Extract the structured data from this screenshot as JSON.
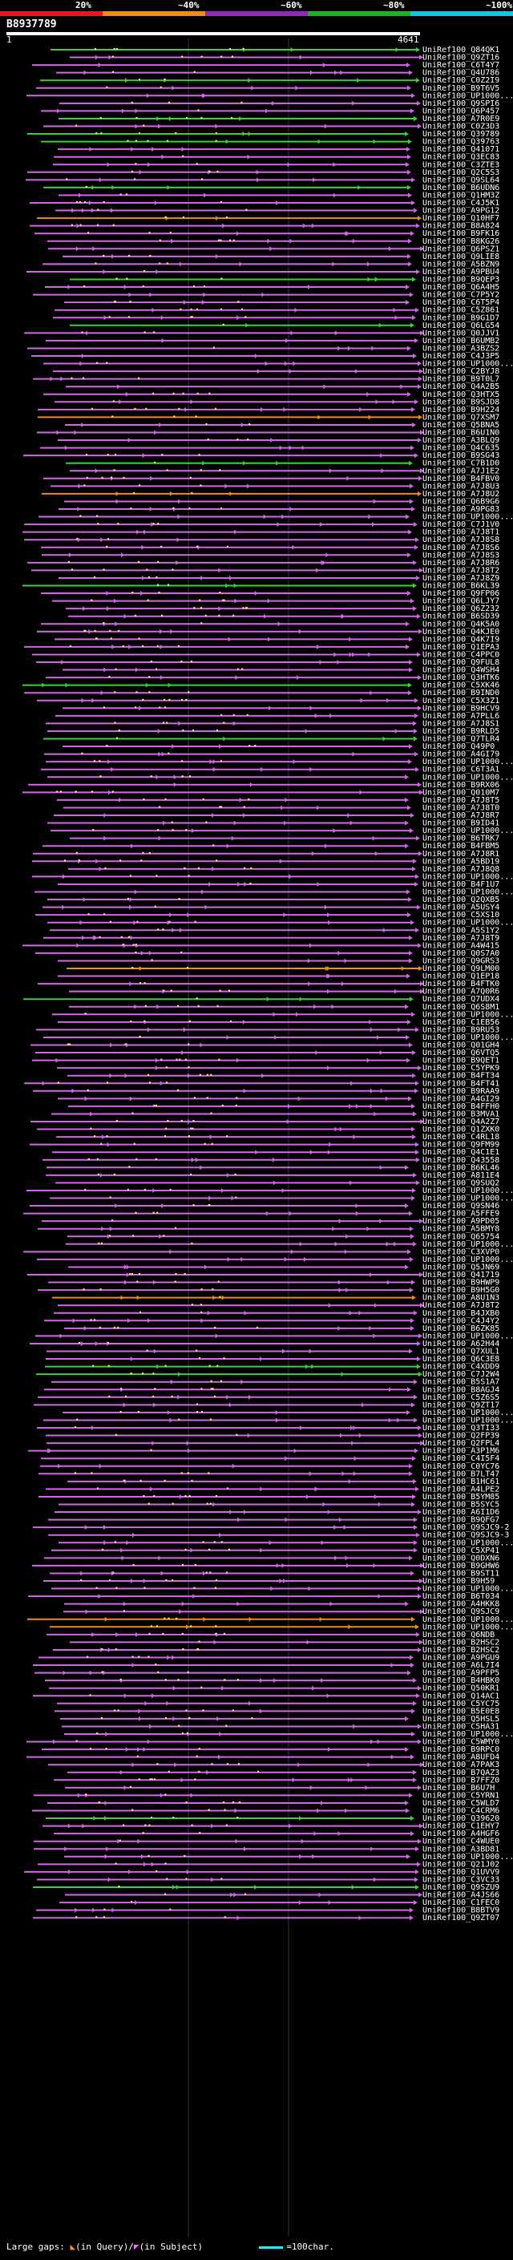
{
  "query": {
    "id": "B8937789",
    "start": "1",
    "end": "4641"
  },
  "legend": [
    {
      "label": "20%",
      "color": "#e8191e"
    },
    {
      "label": "~40%",
      "color": "#f28c1e"
    },
    {
      "label": "~60%",
      "color": "#8e2bb5"
    },
    {
      "label": "~80%",
      "color": "#1fb51f"
    },
    {
      "label": "~100%",
      "color": "#16c3e0"
    }
  ],
  "colors": {
    "magenta": "#d565e8",
    "green": "#3cd13c",
    "orange": "#ee8a1e",
    "background": "#000000",
    "dot": "#ffff66"
  },
  "footer": {
    "large_gaps": "Large gaps:",
    "in_query": "(in Query)/",
    "in_subject": "(in Subject)",
    "scale": "=100char."
  },
  "hits": [
    {
      "label": "UniRef100_Q84QK1",
      "color": "green"
    },
    {
      "label": "UniRef100_Q9ZT16",
      "color": "magenta"
    },
    {
      "label": "UniRef100_C6T4Y7",
      "color": "magenta"
    },
    {
      "label": "UniRef100_Q4U786",
      "color": "magenta"
    },
    {
      "label": "UniRef100_C0Z2I9",
      "color": "green"
    },
    {
      "label": "UniRef100_B9T6V5",
      "color": "magenta"
    },
    {
      "label": "UniRef100_UP1000...",
      "color": "magenta"
    },
    {
      "label": "UniRef100_Q9SPI6",
      "color": "magenta"
    },
    {
      "label": "UniRef100_Q6P457",
      "color": "magenta"
    },
    {
      "label": "UniRef100_A7R0E9",
      "color": "green"
    },
    {
      "label": "UniRef100_C0Z3D3",
      "color": "magenta"
    },
    {
      "label": "UniRef100_Q39789",
      "color": "green"
    },
    {
      "label": "UniRef100_Q39763",
      "color": "green"
    },
    {
      "label": "UniRef100_Q41071",
      "color": "magenta"
    },
    {
      "label": "UniRef100_Q3EC83",
      "color": "magenta"
    },
    {
      "label": "UniRef100_C3ZTE3",
      "color": "magenta"
    },
    {
      "label": "UniRef100_Q2C5S3",
      "color": "magenta"
    },
    {
      "label": "UniRef100_Q9SL64",
      "color": "magenta"
    },
    {
      "label": "UniRef100_B6UDN6",
      "color": "green"
    },
    {
      "label": "UniRef100_Q1HM3Z",
      "color": "magenta"
    },
    {
      "label": "UniRef100_C4J5K1",
      "color": "magenta"
    },
    {
      "label": "UniRef100_A9PG12",
      "color": "magenta"
    },
    {
      "label": "UniRef100_Q10HF7",
      "color": "orange"
    },
    {
      "label": "UniRef100_B8A824",
      "color": "magenta"
    },
    {
      "label": "UniRef100_B9FK16",
      "color": "magenta"
    },
    {
      "label": "UniRef100_B8KG26",
      "color": "magenta"
    },
    {
      "label": "UniRef100_Q6PSZ1",
      "color": "magenta"
    },
    {
      "label": "UniRef100_Q9LIE8",
      "color": "magenta"
    },
    {
      "label": "UniRef100_A5BZN9",
      "color": "magenta"
    },
    {
      "label": "UniRef100_A9PBU4",
      "color": "magenta"
    },
    {
      "label": "UniRef100_B9QEP3",
      "color": "green"
    },
    {
      "label": "UniRef100_Q6A4H5",
      "color": "magenta"
    },
    {
      "label": "UniRef100_C7P5Y2",
      "color": "magenta"
    },
    {
      "label": "UniRef100_C6T5P4",
      "color": "magenta"
    },
    {
      "label": "UniRef100_C5Z861",
      "color": "magenta"
    },
    {
      "label": "UniRef100_B9G1D7",
      "color": "magenta"
    },
    {
      "label": "UniRef100_Q6LG54",
      "color": "green"
    },
    {
      "label": "UniRef100_Q0JJV1",
      "color": "magenta"
    },
    {
      "label": "UniRef100_B6UMB2",
      "color": "magenta"
    },
    {
      "label": "UniRef100_A3BZS2",
      "color": "magenta"
    },
    {
      "label": "UniRef100_C4J3P5",
      "color": "magenta"
    },
    {
      "label": "UniRef100_UP1000...",
      "color": "magenta"
    },
    {
      "label": "UniRef100_C2BYJ8",
      "color": "magenta"
    },
    {
      "label": "UniRef100_B9T0L7",
      "color": "magenta"
    },
    {
      "label": "UniRef100_Q4A2B5",
      "color": "magenta"
    },
    {
      "label": "UniRef100_Q3HTX5",
      "color": "magenta"
    },
    {
      "label": "UniRef100_B9SJD8",
      "color": "magenta"
    },
    {
      "label": "UniRef100_B9H224",
      "color": "magenta"
    },
    {
      "label": "UniRef100_Q7XSM7",
      "color": "orange"
    },
    {
      "label": "UniRef100_Q5BNA5",
      "color": "magenta"
    },
    {
      "label": "UniRef100_B6U1N0",
      "color": "magenta"
    },
    {
      "label": "UniRef100_A3BLQ9",
      "color": "magenta"
    },
    {
      "label": "UniRef100_Q4C635",
      "color": "magenta"
    },
    {
      "label": "UniRef100_B9SG43",
      "color": "magenta"
    },
    {
      "label": "UniRef100_C7B1D0",
      "color": "green"
    },
    {
      "label": "UniRef100_A7J1E2",
      "color": "magenta"
    },
    {
      "label": "UniRef100_B4FBV0",
      "color": "magenta"
    },
    {
      "label": "UniRef100_A7J8U3",
      "color": "magenta"
    },
    {
      "label": "UniRef100_A7J8U2",
      "color": "orange"
    },
    {
      "label": "UniRef100_Q6B9G6",
      "color": "magenta"
    },
    {
      "label": "UniRef100_A9PG83",
      "color": "magenta"
    },
    {
      "label": "UniRef100_UP1000...",
      "color": "magenta"
    },
    {
      "label": "UniRef100_C7J1V0",
      "color": "magenta"
    },
    {
      "label": "UniRef100_A7J8T1",
      "color": "magenta"
    },
    {
      "label": "UniRef100_A7J8S8",
      "color": "magenta"
    },
    {
      "label": "UniRef100_A7J8S6",
      "color": "magenta"
    },
    {
      "label": "UniRef100_A7J8S3",
      "color": "magenta"
    },
    {
      "label": "UniRef100_A7J8R6",
      "color": "magenta"
    },
    {
      "label": "UniRef100_A7J8T2",
      "color": "magenta"
    },
    {
      "label": "UniRef100_A7J8Z9",
      "color": "magenta"
    },
    {
      "label": "UniRef100_B6KL39",
      "color": "green"
    },
    {
      "label": "UniRef100_Q9FP06",
      "color": "magenta"
    },
    {
      "label": "UniRef100_Q6LJY7",
      "color": "magenta"
    },
    {
      "label": "UniRef100_Q6Z232",
      "color": "magenta"
    },
    {
      "label": "UniRef100_B6SD39",
      "color": "magenta"
    },
    {
      "label": "UniRef100_Q4K5A0",
      "color": "magenta"
    },
    {
      "label": "UniRef100_Q4KJE0",
      "color": "magenta"
    },
    {
      "label": "UniRef100_Q4K7I9",
      "color": "magenta"
    },
    {
      "label": "UniRef100_Q1EPA3",
      "color": "magenta"
    },
    {
      "label": "UniRef100_C4PPC0",
      "color": "magenta"
    },
    {
      "label": "UniRef100_Q9FUL8",
      "color": "magenta"
    },
    {
      "label": "UniRef100_Q4WSH4",
      "color": "magenta"
    },
    {
      "label": "UniRef100_Q3HTK6",
      "color": "magenta"
    },
    {
      "label": "UniRef100_C5XK46",
      "color": "green"
    },
    {
      "label": "UniRef100_B9IND0",
      "color": "magenta"
    },
    {
      "label": "UniRef100_C5X3Z1",
      "color": "magenta"
    },
    {
      "label": "UniRef100_B9HCV9",
      "color": "magenta"
    },
    {
      "label": "UniRef100_A7PLL6",
      "color": "magenta"
    },
    {
      "label": "UniRef100_A7J8S1",
      "color": "magenta"
    },
    {
      "label": "UniRef100_B9RLD5",
      "color": "magenta"
    },
    {
      "label": "UniRef100_Q7TLR4",
      "color": "green"
    },
    {
      "label": "UniRef100_Q49P0",
      "color": "magenta"
    },
    {
      "label": "UniRef100_A4GI79",
      "color": "magenta"
    },
    {
      "label": "UniRef100_UP1000...",
      "color": "magenta"
    },
    {
      "label": "UniRef100_C6T3A1",
      "color": "magenta"
    },
    {
      "label": "UniRef100_UP1000...",
      "color": "magenta"
    },
    {
      "label": "UniRef100_B9RX06",
      "color": "magenta"
    },
    {
      "label": "UniRef100_Q010M7",
      "color": "magenta"
    },
    {
      "label": "UniRef100_A7J8T5",
      "color": "magenta"
    },
    {
      "label": "UniRef100_A7J8T0",
      "color": "magenta"
    },
    {
      "label": "UniRef100_A7J8R7",
      "color": "magenta"
    },
    {
      "label": "UniRef100_B9ID41",
      "color": "magenta"
    },
    {
      "label": "UniRef100_UP1000...",
      "color": "magenta"
    },
    {
      "label": "UniRef100_B6TRK7",
      "color": "magenta"
    },
    {
      "label": "UniRef100_B4FBM5",
      "color": "magenta"
    },
    {
      "label": "UniRef100_A7J8R1",
      "color": "magenta"
    },
    {
      "label": "UniRef100_A5BD19",
      "color": "magenta"
    },
    {
      "label": "UniRef100_A7J8Q8",
      "color": "magenta"
    },
    {
      "label": "UniRef100_UP1000...",
      "color": "magenta"
    },
    {
      "label": "UniRef100_B4F1U7",
      "color": "magenta"
    },
    {
      "label": "UniRef100_UP1000...",
      "color": "magenta"
    },
    {
      "label": "UniRef100_Q2QXB5",
      "color": "magenta"
    },
    {
      "label": "UniRef100_A5USY4",
      "color": "magenta"
    },
    {
      "label": "UniRef100_C5XS10",
      "color": "magenta"
    },
    {
      "label": "UniRef100_UP1000...",
      "color": "magenta"
    },
    {
      "label": "UniRef100_A5S1Y2",
      "color": "magenta"
    },
    {
      "label": "UniRef100_A7J8T9",
      "color": "magenta"
    },
    {
      "label": "UniRef100_A4W415",
      "color": "magenta"
    },
    {
      "label": "UniRef100_Q0S7A0",
      "color": "magenta"
    },
    {
      "label": "UniRef100_Q9GRS3",
      "color": "magenta"
    },
    {
      "label": "UniRef100_Q9LM00",
      "color": "orange"
    },
    {
      "label": "UniRef100_Q1EP18",
      "color": "magenta"
    },
    {
      "label": "UniRef100_B4FTK0",
      "color": "magenta"
    },
    {
      "label": "UniRef100_A7Q0R6",
      "color": "magenta"
    },
    {
      "label": "UniRef100_Q7UDX4",
      "color": "green"
    },
    {
      "label": "UniRef100_Q6S8M1",
      "color": "magenta"
    },
    {
      "label": "UniRef100_UP1000...",
      "color": "magenta"
    },
    {
      "label": "UniRef100_C1EB56",
      "color": "magenta"
    },
    {
      "label": "UniRef100_B9RU53",
      "color": "magenta"
    },
    {
      "label": "UniRef100_UP1000...",
      "color": "magenta"
    },
    {
      "label": "UniRef100_Q01GH4",
      "color": "magenta"
    },
    {
      "label": "UniRef100_Q6VTQ5",
      "color": "magenta"
    },
    {
      "label": "UniRef100_B9QET1",
      "color": "magenta"
    },
    {
      "label": "UniRef100_C5YPK9",
      "color": "magenta"
    },
    {
      "label": "UniRef100_B4FT34",
      "color": "magenta"
    },
    {
      "label": "UniRef100_B4FT41",
      "color": "magenta"
    },
    {
      "label": "UniRef100_B9RAA9",
      "color": "magenta"
    },
    {
      "label": "UniRef100_A4GI29",
      "color": "magenta"
    },
    {
      "label": "UniRef100_B4FFH0",
      "color": "magenta"
    },
    {
      "label": "UniRef100_B3MVA1",
      "color": "magenta"
    },
    {
      "label": "UniRef100_Q4A2Z7",
      "color": "magenta"
    },
    {
      "label": "UniRef100_Q1ZXK0",
      "color": "magenta"
    },
    {
      "label": "UniRef100_C4RL18",
      "color": "magenta"
    },
    {
      "label": "UniRef100_Q9FM99",
      "color": "magenta"
    },
    {
      "label": "UniRef100_Q4C1E1",
      "color": "magenta"
    },
    {
      "label": "UniRef100_Q43558",
      "color": "magenta"
    },
    {
      "label": "UniRef100_B6KL46",
      "color": "magenta"
    },
    {
      "label": "UniRef100_A811E4",
      "color": "magenta"
    },
    {
      "label": "UniRef100_Q9SUQ2",
      "color": "magenta"
    },
    {
      "label": "UniRef100_UP1000...",
      "color": "magenta"
    },
    {
      "label": "UniRef100_UP1000...",
      "color": "magenta"
    },
    {
      "label": "UniRef100_Q9SN46",
      "color": "magenta"
    },
    {
      "label": "UniRef100_A5FFE9",
      "color": "magenta"
    },
    {
      "label": "UniRef100_A9PD05",
      "color": "magenta"
    },
    {
      "label": "UniRef100_A5BMY8",
      "color": "magenta"
    },
    {
      "label": "UniRef100_Q65754",
      "color": "magenta"
    },
    {
      "label": "UniRef100_UP1000...",
      "color": "magenta"
    },
    {
      "label": "UniRef100_C3XVP0",
      "color": "magenta"
    },
    {
      "label": "UniRef100_UP1000...",
      "color": "magenta"
    },
    {
      "label": "UniRef100_Q5JN69",
      "color": "magenta"
    },
    {
      "label": "UniRef100_Q41719",
      "color": "magenta"
    },
    {
      "label": "UniRef100_B9HWP9",
      "color": "magenta"
    },
    {
      "label": "UniRef100_B9H5G0",
      "color": "magenta"
    },
    {
      "label": "UniRef100_A8U1N3",
      "color": "orange"
    },
    {
      "label": "UniRef100_A7J8T2",
      "color": "magenta"
    },
    {
      "label": "UniRef100_B4JXB0",
      "color": "magenta"
    },
    {
      "label": "UniRef100_C4J4Y2",
      "color": "magenta"
    },
    {
      "label": "UniRef100_B6ZK85",
      "color": "magenta"
    },
    {
      "label": "UniRef100_UP1000...",
      "color": "magenta"
    },
    {
      "label": "UniRef100_A62H44",
      "color": "magenta"
    },
    {
      "label": "UniRef100_Q7XUL1",
      "color": "magenta"
    },
    {
      "label": "UniRef100_Q6C3E8",
      "color": "magenta"
    },
    {
      "label": "UniRef100_C4XDD9",
      "color": "green"
    },
    {
      "label": "UniRef100_C7J2W4",
      "color": "green"
    },
    {
      "label": "UniRef100_B5S1A7",
      "color": "magenta"
    },
    {
      "label": "UniRef100_B8AGJ4",
      "color": "magenta"
    },
    {
      "label": "UniRef100_C5Z6S5",
      "color": "magenta"
    },
    {
      "label": "UniRef100_Q9ZT17",
      "color": "magenta"
    },
    {
      "label": "UniRef100_UP1000...",
      "color": "magenta"
    },
    {
      "label": "UniRef100_UP1000...",
      "color": "magenta"
    },
    {
      "label": "UniRef100_Q3TI33",
      "color": "magenta"
    },
    {
      "label": "UniRef100_Q2FP39",
      "color": "magenta"
    },
    {
      "label": "UniRef100_Q2FPL4",
      "color": "magenta"
    },
    {
      "label": "UniRef100_A3P1M6",
      "color": "magenta"
    },
    {
      "label": "UniRef100_C4I5F4",
      "color": "magenta"
    },
    {
      "label": "UniRef100_C0YC76",
      "color": "magenta"
    },
    {
      "label": "UniRef100_B7LT47",
      "color": "magenta"
    },
    {
      "label": "UniRef100_B1HC61",
      "color": "magenta"
    },
    {
      "label": "UniRef100_A4LPE2",
      "color": "magenta"
    },
    {
      "label": "UniRef100_B5YM85",
      "color": "magenta"
    },
    {
      "label": "UniRef100_B5SYC5",
      "color": "magenta"
    },
    {
      "label": "UniRef100_A6I1D6",
      "color": "magenta"
    },
    {
      "label": "UniRef100_B9QFG7",
      "color": "magenta"
    },
    {
      "label": "UniRef100_Q9SJC9-2",
      "color": "magenta"
    },
    {
      "label": "UniRef100_Q9SJC9-3",
      "color": "magenta"
    },
    {
      "label": "UniRef100_UP1000...",
      "color": "magenta"
    },
    {
      "label": "UniRef100_C5XP41",
      "color": "magenta"
    },
    {
      "label": "UniRef100_Q0DXN6",
      "color": "magenta"
    },
    {
      "label": "UniRef100_B9GHW6",
      "color": "magenta"
    },
    {
      "label": "UniRef100_B9ST11",
      "color": "magenta"
    },
    {
      "label": "UniRef100_B9H59",
      "color": "magenta"
    },
    {
      "label": "UniRef100_UP1000...",
      "color": "magenta"
    },
    {
      "label": "UniRef100_B6T034",
      "color": "magenta"
    },
    {
      "label": "UniRef100_A4HKK8",
      "color": "magenta"
    },
    {
      "label": "UniRef100_Q9SJC9",
      "color": "magenta"
    },
    {
      "label": "UniRef100_UP1000...",
      "color": "orange"
    },
    {
      "label": "UniRef100_UP1000...",
      "color": "orange"
    },
    {
      "label": "UniRef100_Q6NDB",
      "color": "magenta"
    },
    {
      "label": "UniRef100_B2HSC2",
      "color": "magenta"
    },
    {
      "label": "UniRef100_B2HSC2",
      "color": "magenta"
    },
    {
      "label": "UniRef100_A9PGU9",
      "color": "magenta"
    },
    {
      "label": "UniRef100_A6L7I4",
      "color": "magenta"
    },
    {
      "label": "UniRef100_A9PFP5",
      "color": "magenta"
    },
    {
      "label": "UniRef100_B4HBK0",
      "color": "magenta"
    },
    {
      "label": "UniRef100_Q50KR1",
      "color": "magenta"
    },
    {
      "label": "UniRef100_Q14AC1",
      "color": "magenta"
    },
    {
      "label": "UniRef100_C5YC75",
      "color": "magenta"
    },
    {
      "label": "UniRef100_B5E0E8",
      "color": "magenta"
    },
    {
      "label": "UniRef100_Q5HSL5",
      "color": "magenta"
    },
    {
      "label": "UniRef100_C5HA31",
      "color": "magenta"
    },
    {
      "label": "UniRef100_UP1000...",
      "color": "magenta"
    },
    {
      "label": "UniRef100_C5WMY0",
      "color": "magenta"
    },
    {
      "label": "UniRef100_B9RPC0",
      "color": "magenta"
    },
    {
      "label": "UniRef100_A8UFD4",
      "color": "magenta"
    },
    {
      "label": "UniRef100_A7PAK3",
      "color": "magenta"
    },
    {
      "label": "UniRef100_B7QAZ3",
      "color": "magenta"
    },
    {
      "label": "UniRef100_B7FFZ0",
      "color": "magenta"
    },
    {
      "label": "UniRef100_B6U7H",
      "color": "magenta"
    },
    {
      "label": "UniRef100_C5YRN1",
      "color": "magenta"
    },
    {
      "label": "UniRef100_C5WLD7",
      "color": "magenta"
    },
    {
      "label": "UniRef100_C4CRM6",
      "color": "magenta"
    },
    {
      "label": "UniRef100_Q39620",
      "color": "green"
    },
    {
      "label": "UniRef100_C1EHY7",
      "color": "magenta"
    },
    {
      "label": "UniRef100_A4HGF6",
      "color": "magenta"
    },
    {
      "label": "UniRef100_C4WUE0",
      "color": "magenta"
    },
    {
      "label": "UniRef100_A3BD81",
      "color": "magenta"
    },
    {
      "label": "UniRef100_UP1000...",
      "color": "magenta"
    },
    {
      "label": "UniRef100_Q21J02",
      "color": "magenta"
    },
    {
      "label": "UniRef100_Q1UVV9",
      "color": "magenta"
    },
    {
      "label": "UniRef100_C3VC33",
      "color": "magenta"
    },
    {
      "label": "UniRef100_Q9SZU9",
      "color": "green"
    },
    {
      "label": "UniRef100_A4JS66",
      "color": "magenta"
    },
    {
      "label": "UniRef100_C1FEC0",
      "color": "magenta"
    },
    {
      "label": "UniRef100_B8BTV9",
      "color": "magenta"
    },
    {
      "label": "UniRef100_Q9ZT07",
      "color": "magenta"
    }
  ]
}
